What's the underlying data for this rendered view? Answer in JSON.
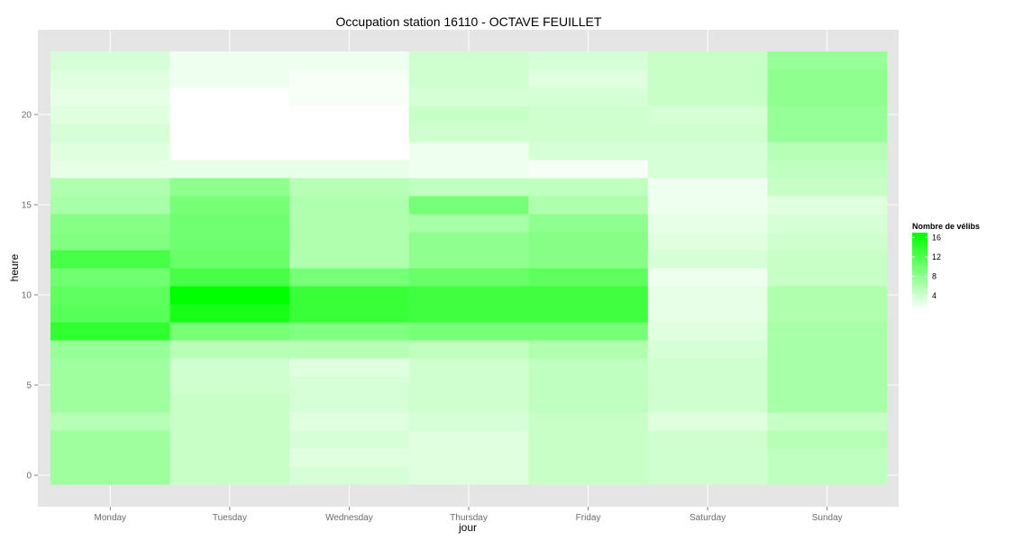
{
  "chart_data": {
    "type": "heatmap",
    "title": "Occupation station 16110 - OCTAVE FEUILLET",
    "xlabel": "jour",
    "ylabel": "heure",
    "x_categories": [
      "Monday",
      "Tuesday",
      "Wednesday",
      "Thursday",
      "Friday",
      "Saturday",
      "Sunday"
    ],
    "y_ticks": [
      0,
      5,
      10,
      15,
      20
    ],
    "ylim": [
      -0.5,
      23.5
    ],
    "color_scale": {
      "low": "#ffffff",
      "high": "#00ff00",
      "min": 1,
      "max": 17
    },
    "legend": {
      "title": "Nombre de vélibs",
      "labels": [
        4,
        8,
        12,
        16
      ],
      "placement": "right"
    },
    "grid": true,
    "background": "#e5e5e5",
    "values": [
      [
        7.0,
        4.5,
        3.5,
        3.0,
        4.5,
        4.0,
        5.0
      ],
      [
        7.0,
        4.5,
        3.0,
        3.0,
        4.5,
        4.0,
        5.0
      ],
      [
        7.0,
        4.5,
        3.5,
        3.0,
        4.5,
        4.0,
        5.5
      ],
      [
        5.5,
        4.5,
        3.0,
        3.5,
        4.5,
        3.0,
        4.5
      ],
      [
        7.0,
        4.5,
        3.5,
        4.0,
        5.0,
        4.0,
        6.5
      ],
      [
        7.0,
        4.0,
        3.5,
        4.0,
        5.0,
        4.0,
        6.5
      ],
      [
        7.0,
        4.0,
        3.0,
        4.0,
        5.0,
        4.0,
        6.5
      ],
      [
        7.5,
        5.5,
        5.5,
        5.0,
        6.0,
        3.5,
        6.5
      ],
      [
        14.0,
        9.5,
        9.0,
        9.5,
        9.5,
        3.0,
        6.5
      ],
      [
        11.5,
        15.5,
        13.5,
        13.0,
        13.0,
        2.5,
        6.0
      ],
      [
        11.0,
        17.0,
        13.5,
        13.0,
        13.0,
        2.5,
        6.0
      ],
      [
        10.0,
        12.5,
        9.5,
        10.5,
        11.0,
        2.0,
        4.5
      ],
      [
        12.5,
        10.5,
        6.0,
        8.0,
        8.5,
        3.5,
        4.5
      ],
      [
        9.0,
        10.0,
        6.0,
        8.0,
        8.5,
        3.0,
        4.0
      ],
      [
        8.5,
        10.0,
        6.0,
        6.5,
        8.0,
        2.5,
        3.5
      ],
      [
        6.5,
        9.5,
        6.0,
        9.5,
        6.0,
        2.0,
        3.0
      ],
      [
        6.0,
        8.0,
        5.5,
        5.0,
        5.0,
        2.0,
        4.5
      ],
      [
        2.5,
        2.5,
        2.5,
        2.0,
        1.5,
        3.5,
        5.0
      ],
      [
        3.0,
        1.0,
        1.0,
        2.0,
        3.5,
        3.5,
        5.5
      ],
      [
        3.5,
        1.0,
        1.0,
        4.0,
        4.0,
        4.0,
        7.5
      ],
      [
        3.0,
        1.0,
        1.0,
        4.5,
        4.0,
        3.5,
        7.5
      ],
      [
        2.5,
        1.0,
        1.5,
        3.5,
        3.5,
        4.5,
        8.0
      ],
      [
        3.0,
        2.0,
        1.5,
        4.0,
        3.0,
        4.5,
        8.0
      ],
      [
        3.5,
        2.0,
        2.0,
        4.0,
        3.5,
        4.5,
        7.5
      ]
    ]
  }
}
